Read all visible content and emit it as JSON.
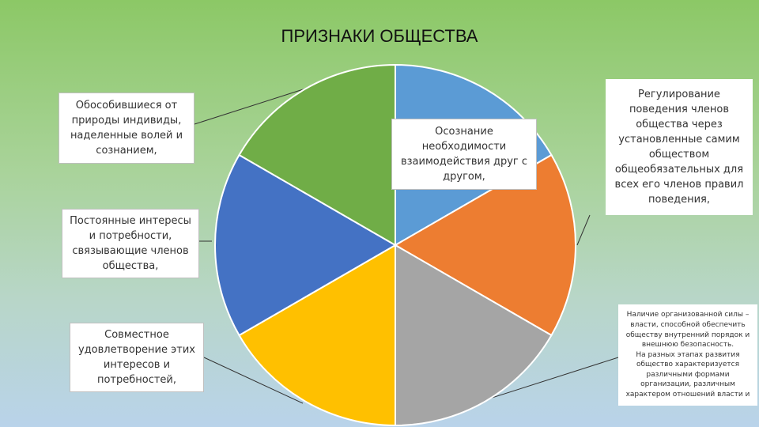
{
  "title": "ПРИЗНАКИ ОБЩЕСТВА",
  "pie": {
    "segments": [
      {
        "id": "seg-awareness",
        "value": 1,
        "color": "#5b9bd5"
      },
      {
        "id": "seg-regulation",
        "value": 1,
        "color": "#ed7d31"
      },
      {
        "id": "seg-organized-power",
        "value": 1,
        "color": "#a5a5a5"
      },
      {
        "id": "seg-joint-satisfaction",
        "value": 1,
        "color": "#ffc000"
      },
      {
        "id": "seg-permanent-interests",
        "value": 1,
        "color": "#4472c4"
      },
      {
        "id": "seg-separated-individuals",
        "value": 1,
        "color": "#70ad47"
      }
    ]
  },
  "labels": {
    "separated_individuals": "Обособившиеся от\nприроды индивиды,\nнаделенные волей и\nсознанием,",
    "permanent_interests": "Постоянные интересы\nи потребности,\nсвязывающие членов\nобщества,",
    "joint_satisfaction": "Совместное\nудовлетворение этих\nинтересов и\nпотребностей,",
    "awareness": "Осознание\nнеобходимости\nвзаимодействия друг с\nдругом,",
    "regulation": "Регулирование\nповедения членов\nобщества через\nустановленные самим\nобществом\nобщеобязательных для\nвсех его членов правил\nповедения,",
    "organized_power": "Наличие организованной силы –\nвласти, способной обеспечить\nобществу внутренний порядок и\nвнешнюю безопасность.\nНа разных этапах развития\nобщество характеризуется\nразличными формами\nорганизации, различным\nхарактером отношений власти и"
  }
}
